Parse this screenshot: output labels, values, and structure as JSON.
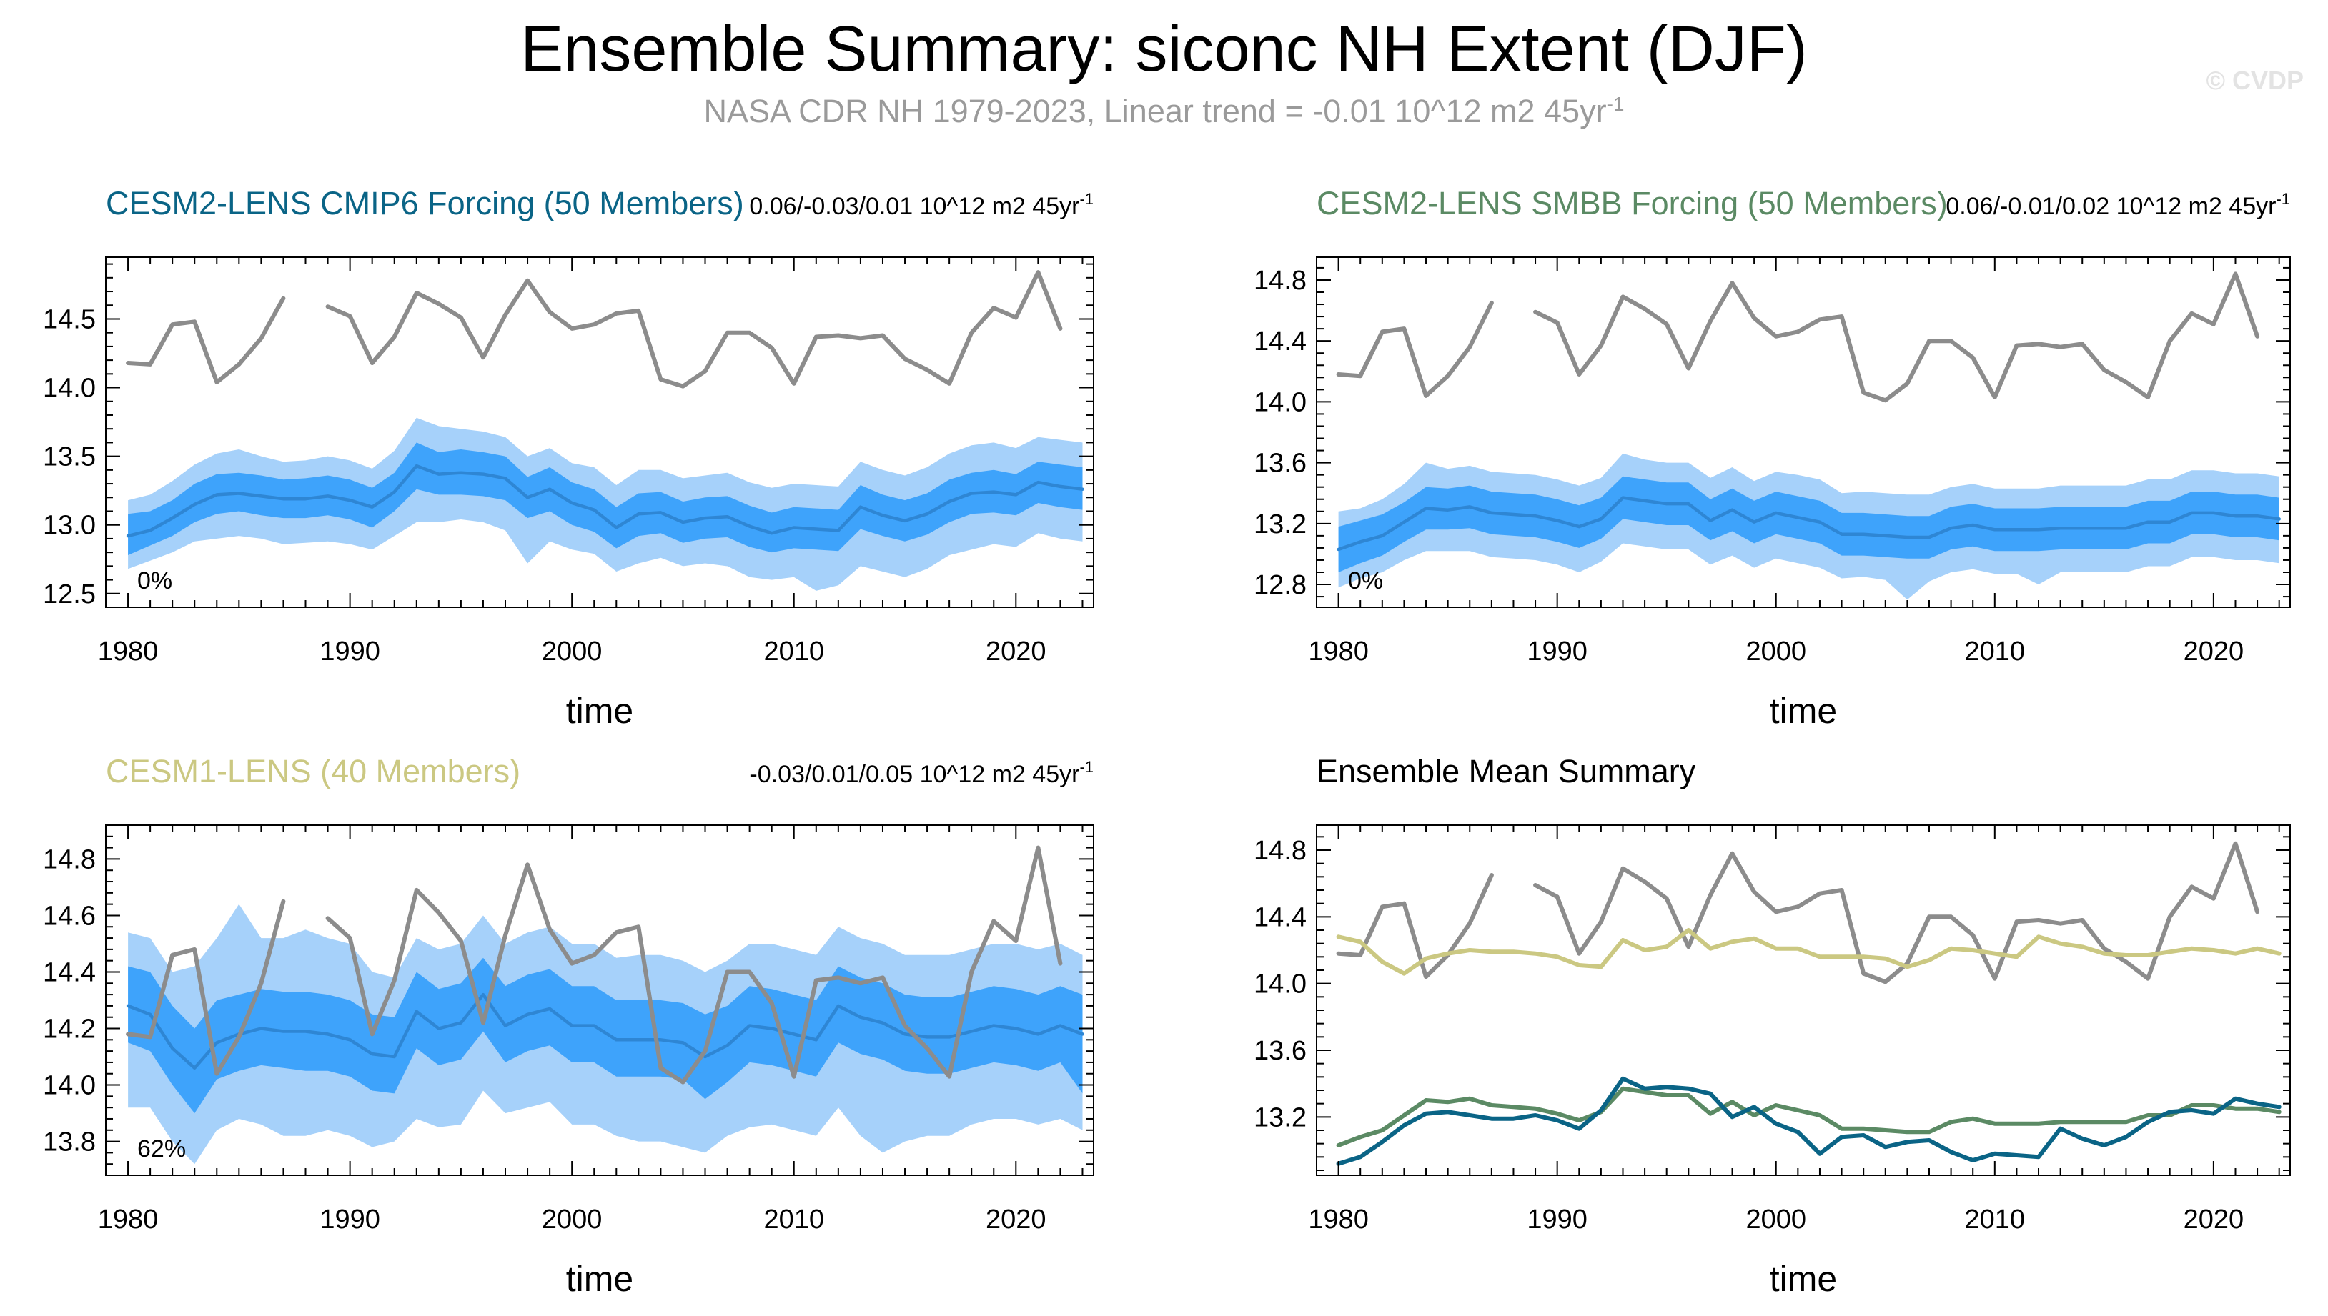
{
  "figure": {
    "title": "Ensemble Summary: siconc NH Extent (DJF)",
    "subtitle_main": "NASA CDR NH 1979-2023, Linear trend = -0.01 10^12 m2 45yr",
    "subtitle_sup": "-1",
    "watermark": "© CVDP",
    "colors": {
      "obs": "#8c8c8c",
      "outer_band": "#a6d1fa",
      "inner_band": "#3ea3fb",
      "mean_line": "#2e86d4",
      "cmip6": "#0a6486",
      "smbb": "#5b8a64",
      "cesm1": "#cbc882"
    }
  },
  "chart_data": [
    {
      "id": "cmip6",
      "type": "line",
      "title": "CESM2-LENS CMIP6 Forcing (50 Members)",
      "title_color": "#0a6486",
      "trend_text": "0.06/-0.03/0.01 10^12 m2 45yr",
      "trend_sup": "-1",
      "percent_label": "0%",
      "xlabel": "time",
      "ylabel": "",
      "xlim": [
        1979,
        2023.5
      ],
      "ylim": [
        12.4,
        14.95
      ],
      "xticks": [
        1980,
        1990,
        2000,
        2010,
        2020
      ],
      "yticks": [
        12.5,
        13.0,
        13.5,
        14.0,
        14.5
      ],
      "ytick_labels": [
        "12.5",
        "13.0",
        "13.5",
        "14.0",
        "14.5"
      ],
      "show_obs": true,
      "bands": {
        "mean": [
          12.92,
          12.96,
          13.05,
          13.15,
          13.22,
          13.23,
          13.21,
          13.19,
          13.19,
          13.21,
          13.18,
          13.13,
          13.24,
          13.43,
          13.37,
          13.38,
          13.37,
          13.34,
          13.2,
          13.26,
          13.16,
          13.11,
          12.98,
          13.08,
          13.09,
          13.02,
          13.05,
          13.06,
          12.99,
          12.94,
          12.98,
          12.97,
          12.96,
          13.13,
          13.07,
          13.03,
          13.08,
          13.17,
          13.23,
          13.24,
          13.22,
          13.31,
          13.28,
          13.26
        ],
        "p25": [
          12.78,
          12.85,
          12.92,
          13.02,
          13.08,
          13.1,
          13.07,
          13.05,
          13.05,
          13.07,
          13.04,
          12.98,
          13.1,
          13.26,
          13.22,
          13.22,
          13.21,
          13.18,
          13.05,
          13.1,
          13.0,
          12.95,
          12.83,
          12.92,
          12.94,
          12.87,
          12.9,
          12.91,
          12.84,
          12.8,
          12.83,
          12.82,
          12.81,
          12.97,
          12.92,
          12.88,
          12.93,
          13.02,
          13.08,
          13.09,
          13.07,
          13.16,
          13.13,
          13.11
        ],
        "p75": [
          13.08,
          13.1,
          13.18,
          13.3,
          13.37,
          13.38,
          13.36,
          13.33,
          13.34,
          13.36,
          13.33,
          13.27,
          13.38,
          13.6,
          13.53,
          13.55,
          13.53,
          13.5,
          13.35,
          13.42,
          13.31,
          13.26,
          13.13,
          13.23,
          13.24,
          13.17,
          13.2,
          13.21,
          13.14,
          13.09,
          13.13,
          13.12,
          13.11,
          13.29,
          13.22,
          13.18,
          13.23,
          13.33,
          13.38,
          13.4,
          13.37,
          13.46,
          13.44,
          13.42
        ],
        "p10": [
          12.68,
          12.74,
          12.8,
          12.88,
          12.9,
          12.92,
          12.9,
          12.86,
          12.87,
          12.88,
          12.86,
          12.82,
          12.92,
          13.02,
          13.02,
          13.04,
          13.02,
          12.96,
          12.72,
          12.88,
          12.82,
          12.79,
          12.66,
          12.72,
          12.76,
          12.7,
          12.72,
          12.7,
          12.62,
          12.6,
          12.62,
          12.52,
          12.56,
          12.7,
          12.66,
          12.62,
          12.68,
          12.78,
          12.82,
          12.86,
          12.84,
          12.94,
          12.9,
          12.88
        ],
        "p90": [
          13.18,
          13.22,
          13.32,
          13.44,
          13.52,
          13.55,
          13.5,
          13.46,
          13.47,
          13.5,
          13.47,
          13.41,
          13.54,
          13.78,
          13.72,
          13.7,
          13.68,
          13.64,
          13.5,
          13.56,
          13.45,
          13.42,
          13.29,
          13.4,
          13.4,
          13.34,
          13.36,
          13.38,
          13.31,
          13.27,
          13.3,
          13.29,
          13.28,
          13.46,
          13.4,
          13.36,
          13.42,
          13.52,
          13.58,
          13.6,
          13.56,
          13.64,
          13.62,
          13.6
        ]
      }
    },
    {
      "id": "smbb",
      "type": "line",
      "title": "CESM2-LENS SMBB Forcing (50 Members)",
      "title_color": "#5b8a64",
      "trend_text": "0.06/-0.01/0.02 10^12 m2 45yr",
      "trend_sup": "-1",
      "percent_label": "0%",
      "xlabel": "time",
      "ylabel": "",
      "xlim": [
        1979,
        2023.5
      ],
      "ylim": [
        12.65,
        14.95
      ],
      "xticks": [
        1980,
        1990,
        2000,
        2010,
        2020
      ],
      "yticks": [
        12.8,
        13.2,
        13.6,
        14.0,
        14.4,
        14.8
      ],
      "ytick_labels": [
        "12.8",
        "13.2",
        "13.6",
        "14.0",
        "14.4",
        "14.8"
      ],
      "show_obs": true,
      "bands": {
        "mean": [
          13.03,
          13.08,
          13.12,
          13.21,
          13.3,
          13.29,
          13.31,
          13.27,
          13.26,
          13.25,
          13.22,
          13.18,
          13.23,
          13.37,
          13.35,
          13.33,
          13.33,
          13.22,
          13.29,
          13.21,
          13.27,
          13.24,
          13.21,
          13.13,
          13.13,
          13.12,
          13.11,
          13.11,
          13.17,
          13.19,
          13.16,
          13.16,
          13.16,
          13.17,
          13.17,
          13.17,
          13.17,
          13.21,
          13.21,
          13.27,
          13.27,
          13.25,
          13.25,
          13.23
        ],
        "p25": [
          12.88,
          12.94,
          12.99,
          13.08,
          13.16,
          13.16,
          13.17,
          13.13,
          13.12,
          13.11,
          13.08,
          13.04,
          13.1,
          13.23,
          13.21,
          13.19,
          13.19,
          13.09,
          13.15,
          13.07,
          13.13,
          13.1,
          13.07,
          12.99,
          12.99,
          12.98,
          12.97,
          12.97,
          13.03,
          13.05,
          13.02,
          13.02,
          13.02,
          13.03,
          13.03,
          13.03,
          13.03,
          13.07,
          13.07,
          13.13,
          13.13,
          13.11,
          13.11,
          13.09
        ],
        "p75": [
          13.18,
          13.22,
          13.26,
          13.34,
          13.44,
          13.43,
          13.45,
          13.41,
          13.4,
          13.39,
          13.36,
          13.32,
          13.37,
          13.51,
          13.49,
          13.47,
          13.47,
          13.36,
          13.43,
          13.35,
          13.41,
          13.38,
          13.35,
          13.27,
          13.27,
          13.26,
          13.25,
          13.25,
          13.31,
          13.33,
          13.3,
          13.3,
          13.3,
          13.31,
          13.31,
          13.31,
          13.31,
          13.35,
          13.35,
          13.41,
          13.41,
          13.39,
          13.39,
          13.37
        ],
        "p10": [
          12.78,
          12.84,
          12.88,
          12.96,
          13.02,
          13.02,
          13.02,
          12.98,
          12.97,
          12.96,
          12.93,
          12.88,
          12.95,
          13.07,
          13.05,
          13.03,
          13.03,
          12.93,
          12.99,
          12.91,
          12.97,
          12.94,
          12.91,
          12.84,
          12.85,
          12.83,
          12.7,
          12.82,
          12.88,
          12.9,
          12.87,
          12.87,
          12.8,
          12.88,
          12.88,
          12.88,
          12.88,
          12.92,
          12.92,
          12.98,
          12.98,
          12.96,
          12.96,
          12.94
        ],
        "p90": [
          13.28,
          13.3,
          13.36,
          13.46,
          13.6,
          13.56,
          13.58,
          13.54,
          13.53,
          13.52,
          13.49,
          13.45,
          13.5,
          13.66,
          13.62,
          13.6,
          13.6,
          13.5,
          13.57,
          13.48,
          13.54,
          13.52,
          13.49,
          13.4,
          13.41,
          13.4,
          13.39,
          13.39,
          13.44,
          13.46,
          13.43,
          13.43,
          13.43,
          13.45,
          13.45,
          13.45,
          13.45,
          13.49,
          13.49,
          13.55,
          13.55,
          13.53,
          13.53,
          13.51
        ]
      }
    },
    {
      "id": "cesm1",
      "type": "line",
      "title": "CESM1-LENS (40 Members)",
      "title_color": "#cbc882",
      "trend_text": "-0.03/0.01/0.05 10^12 m2 45yr",
      "trend_sup": "-1",
      "percent_label": "62%",
      "xlabel": "time",
      "ylabel": "",
      "xlim": [
        1979,
        2023.5
      ],
      "ylim": [
        13.68,
        14.92
      ],
      "xticks": [
        1980,
        1990,
        2000,
        2010,
        2020
      ],
      "yticks": [
        13.8,
        14.0,
        14.2,
        14.4,
        14.6,
        14.8
      ],
      "ytick_labels": [
        "13.8",
        "14.0",
        "14.2",
        "14.4",
        "14.6",
        "14.8"
      ],
      "show_obs": true,
      "bands": {
        "mean": [
          14.28,
          14.25,
          14.13,
          14.06,
          14.15,
          14.18,
          14.2,
          14.19,
          14.19,
          14.18,
          14.16,
          14.11,
          14.1,
          14.26,
          14.2,
          14.22,
          14.32,
          14.21,
          14.25,
          14.27,
          14.21,
          14.21,
          14.16,
          14.16,
          14.16,
          14.15,
          14.1,
          14.14,
          14.21,
          14.2,
          14.18,
          14.16,
          14.28,
          14.24,
          14.22,
          14.18,
          14.17,
          14.17,
          14.19,
          14.21,
          14.2,
          14.18,
          14.21,
          14.18
        ],
        "p25": [
          14.15,
          14.12,
          14.0,
          13.9,
          14.02,
          14.05,
          14.07,
          14.06,
          14.05,
          14.05,
          14.03,
          13.98,
          13.97,
          14.13,
          14.07,
          14.09,
          14.19,
          14.08,
          14.12,
          14.14,
          14.08,
          14.08,
          14.03,
          14.03,
          14.03,
          14.02,
          13.95,
          14.01,
          14.08,
          14.07,
          14.05,
          14.03,
          14.15,
          14.11,
          14.09,
          14.05,
          14.04,
          14.04,
          14.06,
          14.08,
          14.07,
          14.05,
          14.08,
          13.97
        ],
        "p75": [
          14.42,
          14.4,
          14.28,
          14.2,
          14.3,
          14.32,
          14.34,
          14.33,
          14.33,
          14.32,
          14.3,
          14.25,
          14.24,
          14.4,
          14.34,
          14.36,
          14.45,
          14.35,
          14.39,
          14.41,
          14.35,
          14.35,
          14.3,
          14.3,
          14.3,
          14.29,
          14.25,
          14.28,
          14.35,
          14.34,
          14.32,
          14.3,
          14.42,
          14.38,
          14.36,
          14.32,
          14.31,
          14.31,
          14.33,
          14.35,
          14.34,
          14.32,
          14.35,
          14.32
        ],
        "p10": [
          13.92,
          13.92,
          13.8,
          13.72,
          13.84,
          13.88,
          13.86,
          13.82,
          13.82,
          13.84,
          13.82,
          13.78,
          13.8,
          13.88,
          13.85,
          13.86,
          13.98,
          13.9,
          13.92,
          13.94,
          13.86,
          13.86,
          13.82,
          13.8,
          13.8,
          13.78,
          13.76,
          13.82,
          13.85,
          13.86,
          13.84,
          13.82,
          13.92,
          13.82,
          13.76,
          13.8,
          13.82,
          13.82,
          13.86,
          13.88,
          13.88,
          13.86,
          13.88,
          13.84
        ],
        "p90": [
          14.54,
          14.52,
          14.4,
          14.42,
          14.52,
          14.64,
          14.52,
          14.52,
          14.55,
          14.52,
          14.5,
          14.4,
          14.38,
          14.52,
          14.48,
          14.5,
          14.6,
          14.5,
          14.54,
          14.56,
          14.5,
          14.5,
          14.45,
          14.46,
          14.46,
          14.44,
          14.4,
          14.44,
          14.5,
          14.5,
          14.48,
          14.46,
          14.56,
          14.52,
          14.5,
          14.46,
          14.46,
          14.46,
          14.48,
          14.5,
          14.5,
          14.48,
          14.5,
          14.46
        ]
      }
    },
    {
      "id": "summary",
      "type": "line",
      "title": "Ensemble Mean Summary",
      "title_color": "#000000",
      "trend_text": "",
      "trend_sup": "",
      "percent_label": "",
      "xlabel": "time",
      "ylabel": "",
      "xlim": [
        1979,
        2023.5
      ],
      "ylim": [
        12.85,
        14.95
      ],
      "xticks": [
        1980,
        1990,
        2000,
        2010,
        2020
      ],
      "yticks": [
        13.2,
        13.6,
        14.0,
        14.4,
        14.8
      ],
      "ytick_labels": [
        "13.2",
        "13.6",
        "14.0",
        "14.4",
        "14.8"
      ],
      "show_obs": true,
      "lines": [
        {
          "name": "CESM1-LENS",
          "color_key": "cesm1",
          "ref": "cesm1"
        },
        {
          "name": "CESM2-LENS SMBB",
          "color_key": "smbb",
          "ref": "smbb"
        },
        {
          "name": "CESM2-LENS CMIP6",
          "color_key": "cmip6",
          "ref": "cmip6"
        }
      ]
    }
  ],
  "observations": {
    "name": "NASA CDR NH",
    "years": [
      1980,
      1981,
      1982,
      1983,
      1984,
      1985,
      1986,
      1987,
      1988,
      1989,
      1990,
      1991,
      1992,
      1993,
      1994,
      1995,
      1996,
      1997,
      1998,
      1999,
      2000,
      2001,
      2002,
      2003,
      2004,
      2005,
      2006,
      2007,
      2008,
      2009,
      2010,
      2011,
      2012,
      2013,
      2014,
      2015,
      2016,
      2017,
      2018,
      2019,
      2020,
      2021,
      2022,
      2023
    ],
    "values": [
      14.18,
      14.17,
      14.46,
      14.48,
      14.04,
      14.17,
      14.36,
      14.65,
      null,
      14.59,
      14.52,
      14.18,
      14.37,
      14.69,
      14.61,
      14.51,
      14.22,
      14.53,
      14.78,
      14.55,
      14.43,
      14.46,
      14.54,
      14.56,
      14.06,
      14.01,
      14.12,
      14.4,
      14.4,
      14.29,
      14.03,
      14.37,
      14.38,
      14.36,
      14.38,
      14.21,
      14.13,
      14.03,
      14.4,
      14.58,
      14.51,
      14.84,
      14.43,
      null
    ]
  }
}
